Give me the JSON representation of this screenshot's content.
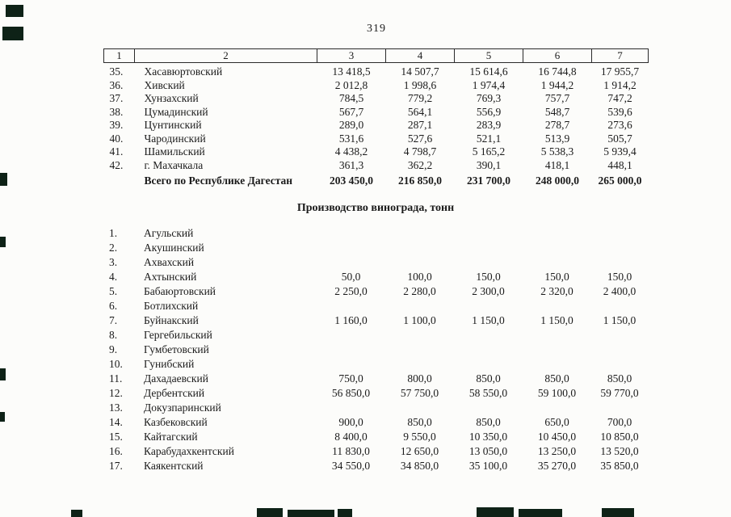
{
  "page": {
    "number": "319"
  },
  "column_index": [
    "1",
    "2",
    "3",
    "4",
    "5",
    "6",
    "7"
  ],
  "table1": {
    "rows": [
      {
        "num": "35.",
        "name": "Хасавюртовский",
        "values": [
          "13 418,5",
          "14 507,7",
          "15 614,6",
          "16 744,8",
          "17 955,7"
        ]
      },
      {
        "num": "36.",
        "name": "Хивский",
        "values": [
          "2 012,8",
          "1 998,6",
          "1 974,4",
          "1 944,2",
          "1 914,2"
        ]
      },
      {
        "num": "37.",
        "name": "Хунзахский",
        "values": [
          "784,5",
          "779,2",
          "769,3",
          "757,7",
          "747,2"
        ]
      },
      {
        "num": "38.",
        "name": "Цумадинский",
        "values": [
          "567,7",
          "564,1",
          "556,9",
          "548,7",
          "539,6"
        ]
      },
      {
        "num": "39.",
        "name": "Цунтинский",
        "values": [
          "289,0",
          "287,1",
          "283,9",
          "278,7",
          "273,6"
        ]
      },
      {
        "num": "40.",
        "name": "Чародинский",
        "values": [
          "531,6",
          "527,6",
          "521,1",
          "513,9",
          "505,7"
        ]
      },
      {
        "num": "41.",
        "name": "Шамильский",
        "values": [
          "4 438,2",
          "4 798,7",
          "5 165,2",
          "5 538,3",
          "5 939,4"
        ]
      },
      {
        "num": "42.",
        "name": "г. Махачкала",
        "values": [
          "361,3",
          "362,2",
          "390,1",
          "418,1",
          "448,1"
        ]
      }
    ],
    "total_row": {
      "num": "",
      "name": "Всего по Республике Дагестан",
      "values": [
        "203 450,0",
        "216 850,0",
        "231 700,0",
        "248 000,0",
        "265 000,0"
      ]
    }
  },
  "table2": {
    "title": "Производство винограда, тонн",
    "rows": [
      {
        "num": "1.",
        "name": "Агульский",
        "values": [
          "",
          "",
          "",
          "",
          ""
        ]
      },
      {
        "num": "2.",
        "name": "Акушинский",
        "values": [
          "",
          "",
          "",
          "",
          ""
        ]
      },
      {
        "num": "3.",
        "name": "Ахвахский",
        "values": [
          "",
          "",
          "",
          "",
          ""
        ]
      },
      {
        "num": "4.",
        "name": "Ахтынский",
        "values": [
          "50,0",
          "100,0",
          "150,0",
          "150,0",
          "150,0"
        ]
      },
      {
        "num": "5.",
        "name": "Бабаюртовский",
        "values": [
          "2 250,0",
          "2 280,0",
          "2 300,0",
          "2 320,0",
          "2 400,0"
        ]
      },
      {
        "num": "6.",
        "name": "Ботлихский",
        "values": [
          "",
          "",
          "",
          "",
          ""
        ]
      },
      {
        "num": "7.",
        "name": "Буйнакский",
        "values": [
          "1 160,0",
          "1 100,0",
          "1 150,0",
          "1 150,0",
          "1 150,0"
        ]
      },
      {
        "num": "8.",
        "name": "Гергебильский",
        "values": [
          "",
          "",
          "",
          "",
          ""
        ]
      },
      {
        "num": "9.",
        "name": "Гумбетовский",
        "values": [
          "",
          "",
          "",
          "",
          ""
        ]
      },
      {
        "num": "10.",
        "name": "Гунибский",
        "values": [
          "",
          "",
          "",
          "",
          ""
        ]
      },
      {
        "num": "11.",
        "name": "Дахадаевский",
        "values": [
          "750,0",
          "800,0",
          "850,0",
          "850,0",
          "850,0"
        ]
      },
      {
        "num": "12.",
        "name": "Дербентский",
        "values": [
          "56 850,0",
          "57 750,0",
          "58 550,0",
          "59 100,0",
          "59 770,0"
        ]
      },
      {
        "num": "13.",
        "name": "Докузпаринский",
        "values": [
          "",
          "",
          "",
          "",
          ""
        ]
      },
      {
        "num": "14.",
        "name": "Казбековский",
        "values": [
          "900,0",
          "850,0",
          "850,0",
          "650,0",
          "700,0"
        ]
      },
      {
        "num": "15.",
        "name": "Кайтагский",
        "values": [
          "8 400,0",
          "9 550,0",
          "10 350,0",
          "10 450,0",
          "10 850,0"
        ]
      },
      {
        "num": "16.",
        "name": "Карабудахкентский",
        "values": [
          "11 830,0",
          "12 650,0",
          "13 050,0",
          "13 250,0",
          "13 520,0"
        ]
      },
      {
        "num": "17.",
        "name": "Каякентский",
        "values": [
          "34 550,0",
          "34 850,0",
          "35 100,0",
          "35 270,0",
          "35 850,0"
        ]
      }
    ]
  }
}
